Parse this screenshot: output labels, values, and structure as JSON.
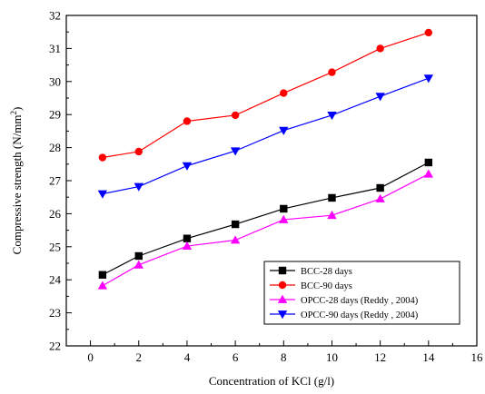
{
  "chart_data": {
    "type": "line",
    "xlabel": "Concentration of KCl (g/l)",
    "ylabel": "Compressive strength (N/mm",
    "ylabel_sup": "2",
    "ylabel_close": ")",
    "xlim": [
      -1,
      16
    ],
    "ylim": [
      22,
      32
    ],
    "xticks": [
      0,
      2,
      4,
      6,
      8,
      10,
      12,
      14,
      16
    ],
    "yticks": [
      22,
      23,
      24,
      25,
      26,
      27,
      28,
      29,
      30,
      31,
      32
    ],
    "grid": false,
    "legend_position": "bottom-right",
    "series": [
      {
        "name": "BCC-28 days",
        "color": "#000000",
        "marker": "square",
        "x": [
          0.5,
          2,
          4,
          6,
          8,
          10,
          12,
          14
        ],
        "y": [
          24.15,
          24.72,
          25.25,
          25.68,
          26.15,
          26.48,
          26.78,
          27.55
        ]
      },
      {
        "name": "BCC-90 days",
        "color": "#ff0000",
        "marker": "circle",
        "x": [
          0.5,
          2,
          4,
          6,
          8,
          10,
          12,
          14
        ],
        "y": [
          27.7,
          27.88,
          28.8,
          28.98,
          29.65,
          30.28,
          31.0,
          31.48
        ]
      },
      {
        "name": "OPCC-28 days (Reddy , 2004)",
        "color": "#ff00ff",
        "marker": "triangle-up",
        "x": [
          0.5,
          2,
          4,
          6,
          8,
          10,
          12,
          14
        ],
        "y": [
          23.82,
          24.45,
          25.02,
          25.2,
          25.82,
          25.95,
          26.45,
          27.2
        ]
      },
      {
        "name": "OPCC-90 days (Reddy , 2004)",
        "color": "#0000ff",
        "marker": "triangle-down",
        "x": [
          0.5,
          2,
          4,
          6,
          8,
          10,
          12,
          14
        ],
        "y": [
          26.6,
          26.82,
          27.45,
          27.9,
          28.52,
          28.98,
          29.55,
          30.1
        ]
      }
    ]
  }
}
